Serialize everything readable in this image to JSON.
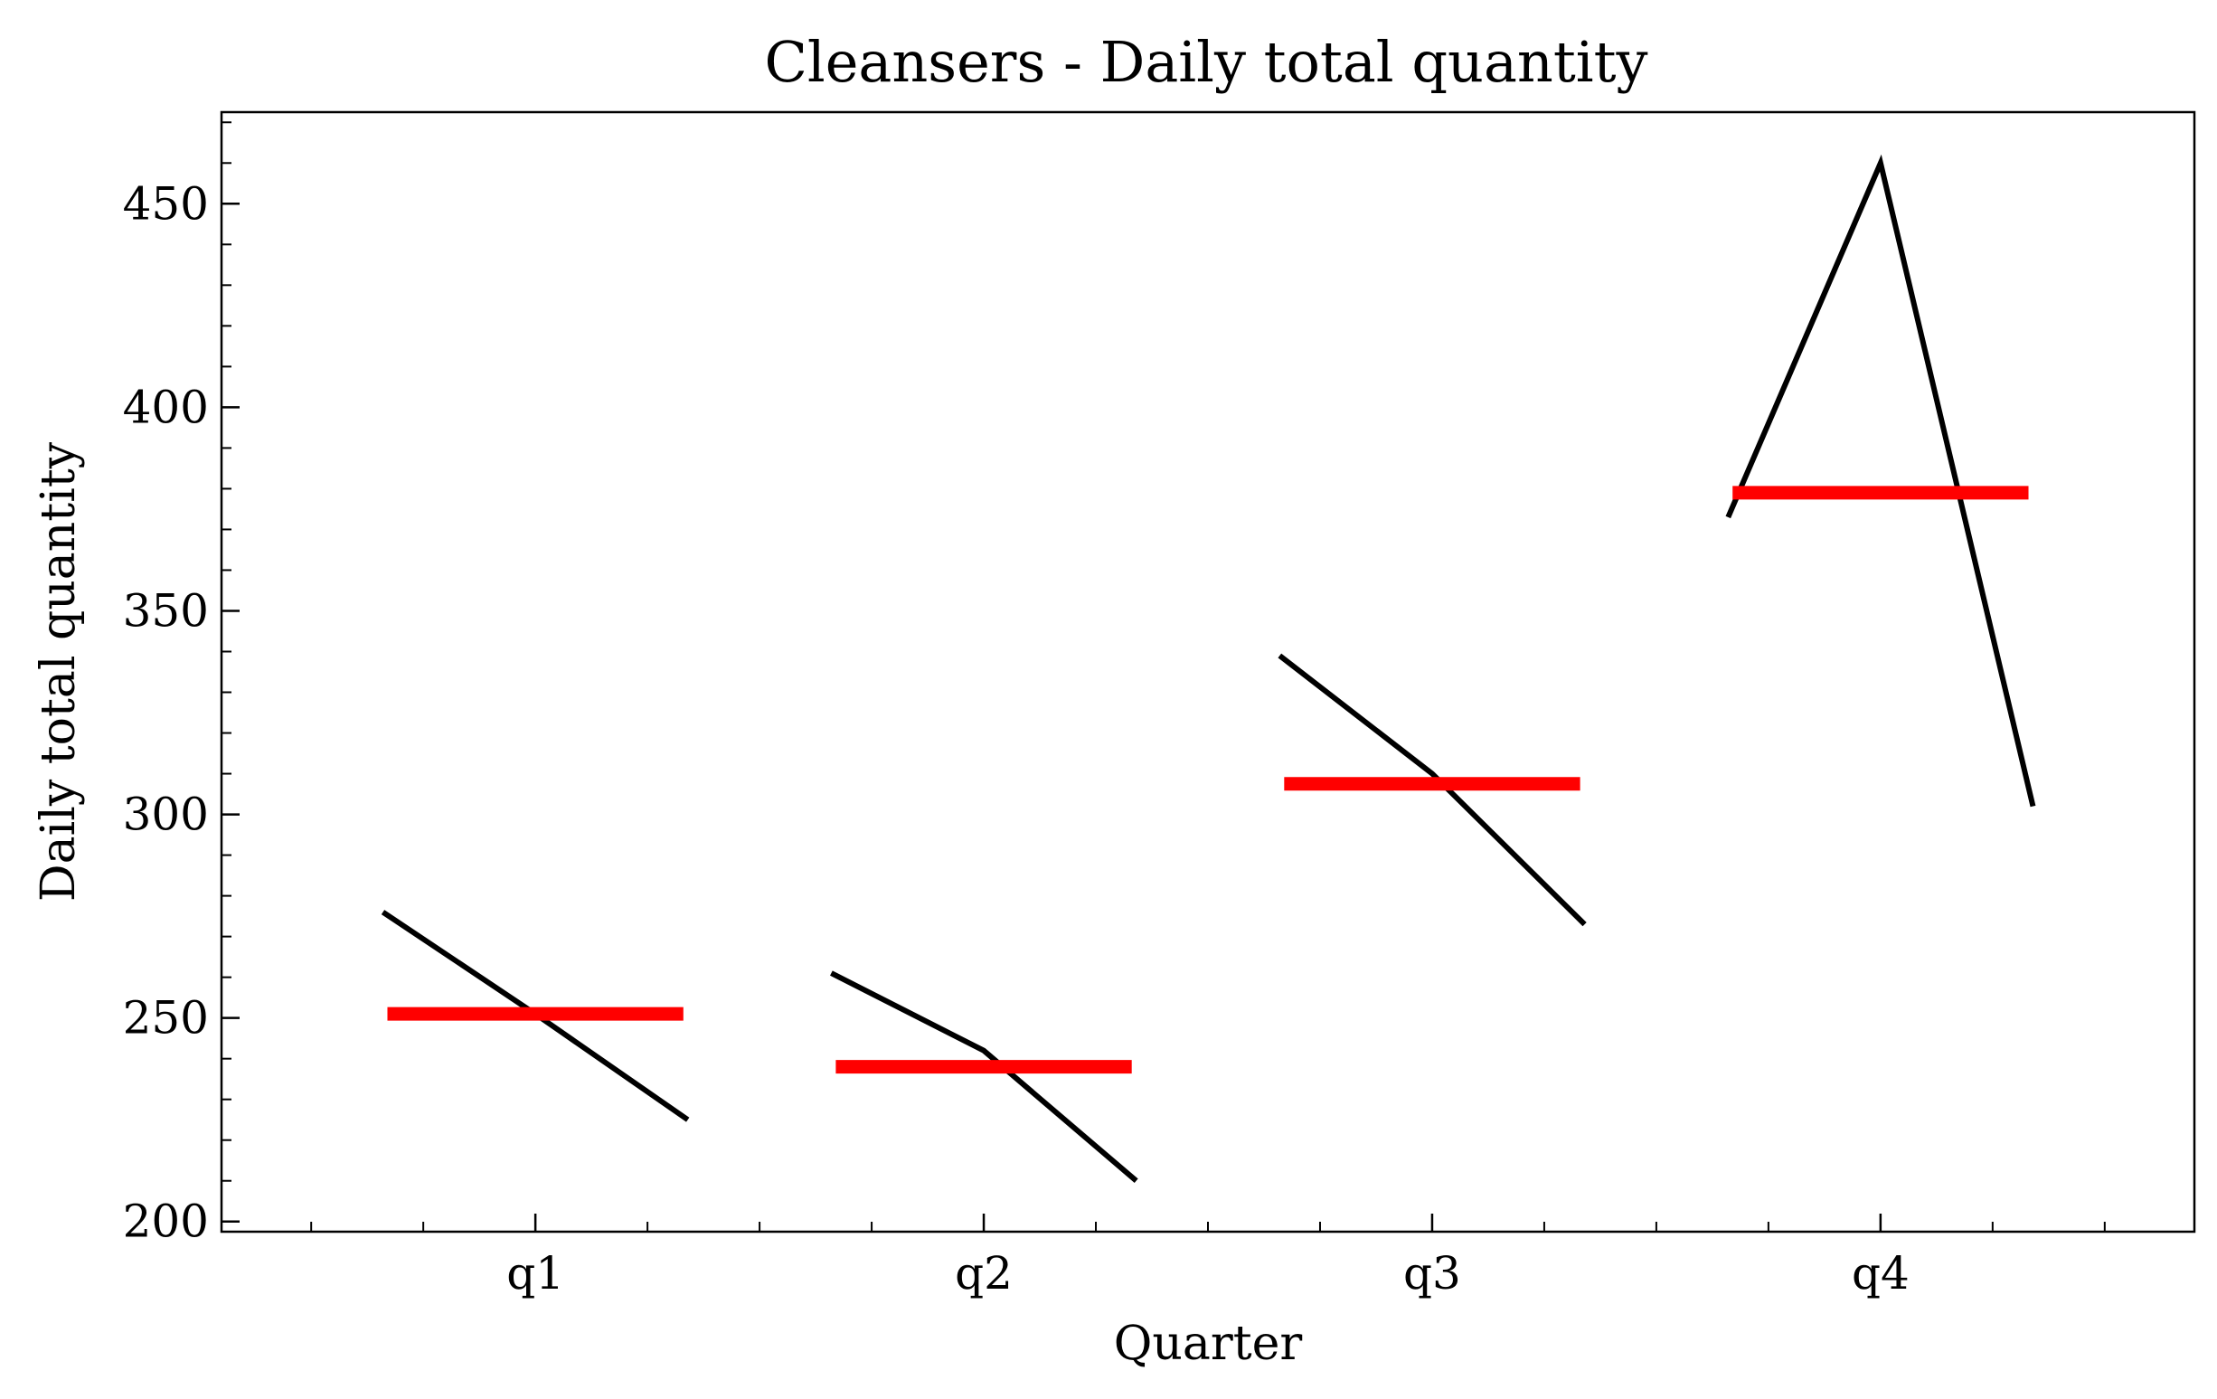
{
  "chart_data": {
    "type": "line",
    "title": "Cleansers - Daily total quantity",
    "xlabel": "Quarter",
    "ylabel": "Daily total quantity",
    "categories": [
      "q1",
      "q2",
      "q3",
      "q4"
    ],
    "yticks": [
      "200",
      "250",
      "300",
      "350",
      "400",
      "450"
    ],
    "ylim": [
      197.5,
      472.5
    ],
    "y_minor_step": 10,
    "grid": false,
    "series": [
      {
        "role": "monthly-values",
        "color": "#000000",
        "groups": [
          [
            276,
            251,
            225
          ],
          [
            261,
            242,
            210
          ],
          [
            339,
            310,
            273
          ],
          [
            373,
            460,
            302
          ]
        ]
      },
      {
        "role": "quarter-mean",
        "color": "#ff0000",
        "values": [
          251,
          238,
          307.5,
          379
        ]
      }
    ]
  }
}
